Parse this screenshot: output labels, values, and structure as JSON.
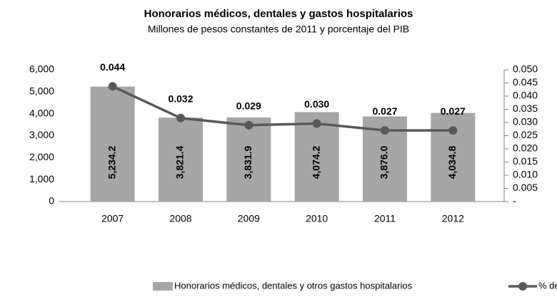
{
  "chart_data": {
    "type": "combo",
    "title": "Honorarios médicos, dentales y gastos hospitalarios",
    "subtitle": "Millones de pesos constantes de 2011 y porcentaje del PIB",
    "categories": [
      "2007",
      "2008",
      "2009",
      "2010",
      "2011",
      "2012"
    ],
    "series": [
      {
        "name": "Honorarios médicos, dentales y otros gastos hospitalarios",
        "type": "bar",
        "color": "#a6a6a6",
        "values": [
          5234.2,
          3821.4,
          3831.9,
          4074.2,
          3876.0,
          4034.8
        ],
        "value_labels": [
          "5,234.2",
          "3,821.4",
          "3,831.9",
          "4,074.2",
          "3,876.0",
          "4,034.8"
        ]
      },
      {
        "name": "% del PIB",
        "type": "line",
        "axis": "y2",
        "color": "#595959",
        "values": [
          0.0437,
          0.0317,
          0.029,
          0.0296,
          0.027,
          0.027
        ],
        "value_labels": [
          "0.044",
          "0.032",
          "0.029",
          "0.030",
          "0.027",
          "0.027"
        ]
      }
    ],
    "ylim": [
      0,
      6000
    ],
    "yticks": [
      0,
      {
        "value": 1000,
        "label": "1,000"
      },
      {
        "value": 2000,
        "label": "2,000"
      },
      {
        "value": 3000,
        "label": "3,000"
      },
      {
        "value": 4000,
        "label": "4,000"
      },
      {
        "value": 5000,
        "label": "5,000"
      },
      {
        "value": 6000,
        "label": "6,000"
      }
    ],
    "y2lim": [
      0,
      0.05
    ],
    "y2ticks": [
      {
        "value": 0,
        "label": "-"
      },
      0.005,
      {
        "value": 0.01,
        "label": "0.010"
      },
      0.015,
      {
        "value": 0.02,
        "label": "0.020"
      },
      0.025,
      {
        "value": 0.03,
        "label": "0.030"
      },
      0.035,
      {
        "value": 0.04,
        "label": "0.040"
      },
      0.045,
      {
        "value": 0.05,
        "label": "0.050"
      }
    ],
    "grid": false
  }
}
